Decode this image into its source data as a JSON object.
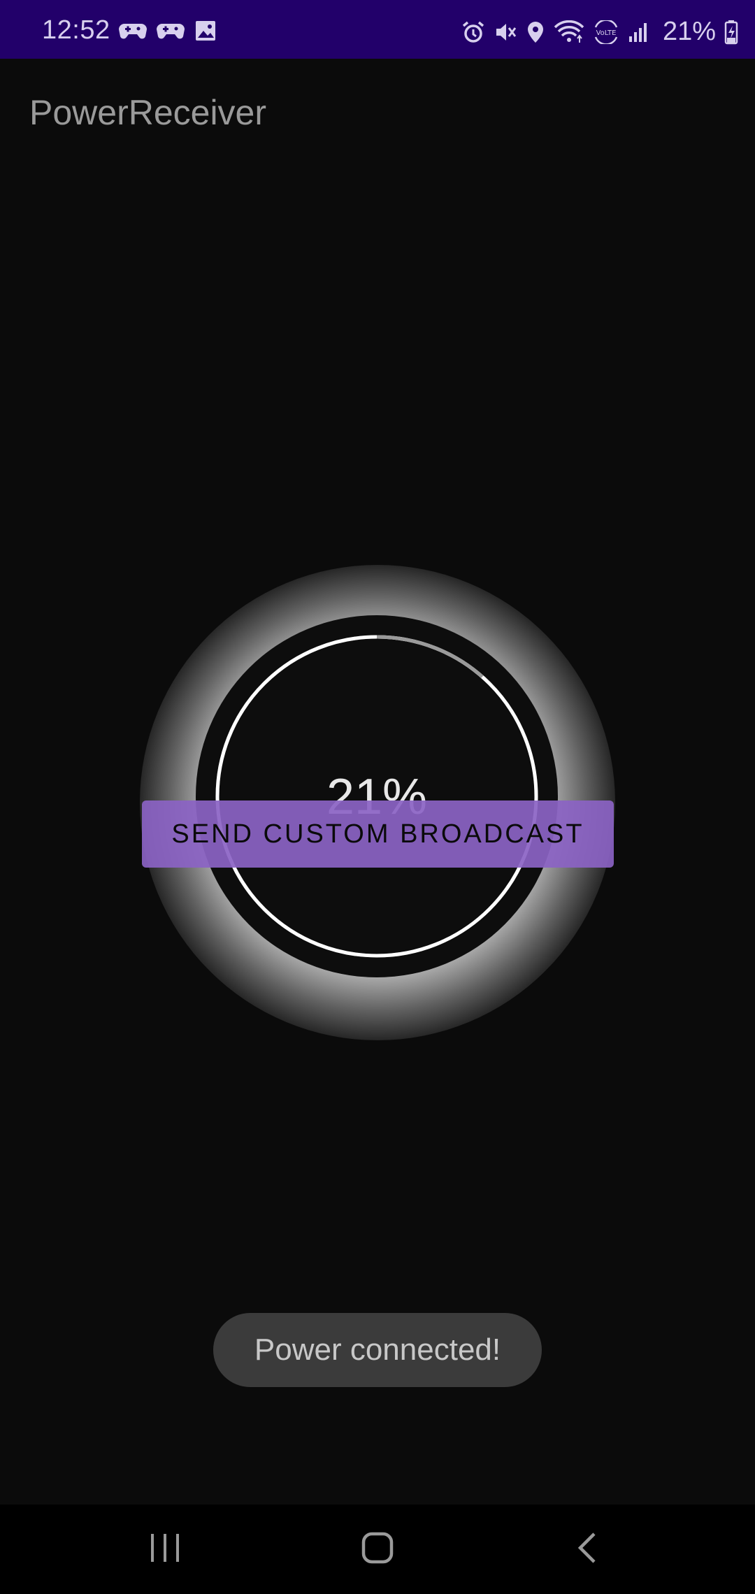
{
  "status_bar": {
    "time": "12:52",
    "battery_percent": "21%",
    "left_icons": [
      "gamepad-icon",
      "gamepad-icon",
      "image-icon"
    ],
    "right_icons": [
      "alarm-icon",
      "mute-icon",
      "location-icon",
      "wifi-icon",
      "volte-icon",
      "signal-icon",
      "battery-charging-icon"
    ],
    "background": "#22006a"
  },
  "app": {
    "title": "PowerReceiver"
  },
  "battery_display": {
    "level_text": "21%"
  },
  "main": {
    "broadcast_button_label": "SEND CUSTOM BROADCAST",
    "accent": "#8b63c4"
  },
  "toast": {
    "message": "Power connected!"
  },
  "nav_bar": {
    "items": [
      "recents-icon",
      "home-icon",
      "back-icon"
    ]
  }
}
